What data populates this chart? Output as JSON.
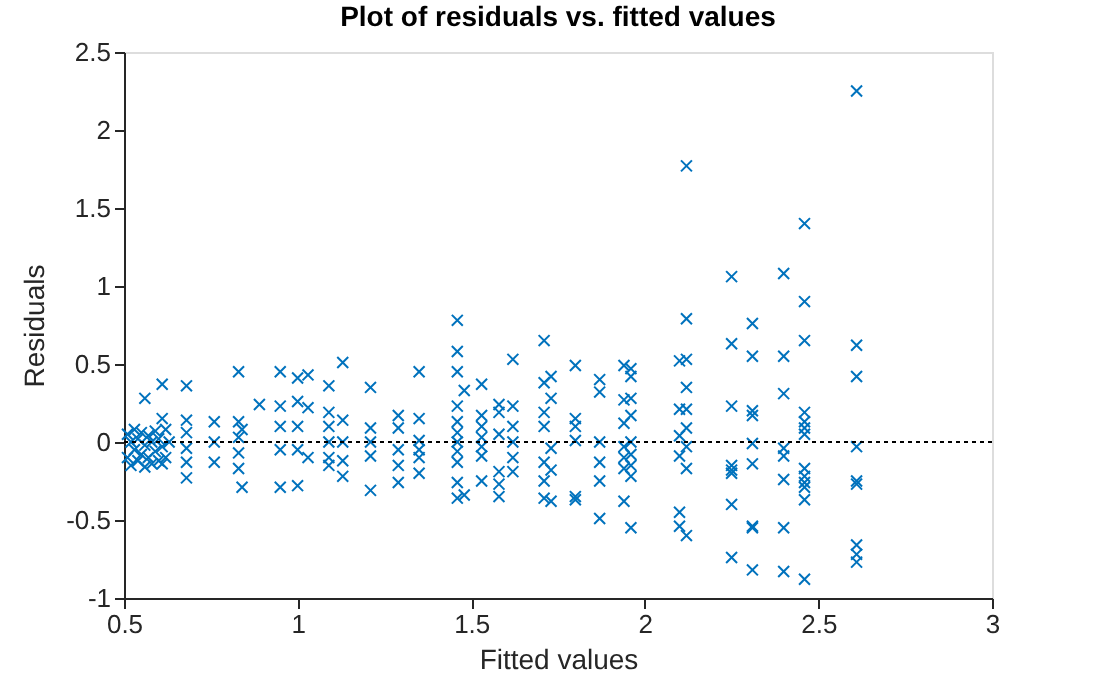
{
  "chart_data": {
    "type": "scatter",
    "title": "Plot of residuals vs. fitted values",
    "xlabel": "Fitted values",
    "ylabel": "Residuals",
    "marker": "cross",
    "grid": false,
    "legend": false,
    "xlim": [
      0.5,
      3
    ],
    "ylim": [
      -1,
      2.5
    ],
    "xticks": [
      0.5,
      1,
      1.5,
      2,
      2.5,
      3
    ],
    "yticks": [
      -1,
      -0.5,
      0,
      0.5,
      1,
      1.5,
      2,
      2.5
    ],
    "ref_lines": [
      {
        "axis": "y",
        "value": 0,
        "color": "#000000",
        "line_style": "dotted"
      }
    ],
    "series": [
      {
        "color": "#0072bd",
        "x": [
          0.51,
          0.51,
          0.52,
          0.52,
          0.53,
          0.53,
          0.54,
          0.54,
          0.55,
          0.55,
          0.56,
          0.56,
          0.57,
          0.57,
          0.58,
          0.58,
          0.59,
          0.59,
          0.6,
          0.6,
          0.61,
          0.61,
          0.61,
          0.61,
          0.62,
          0.62,
          0.56,
          0.63,
          0.68,
          0.68,
          0.68,
          0.68,
          0.68,
          0.68,
          0.76,
          0.76,
          0.76,
          0.83,
          0.83,
          0.83,
          0.83,
          0.83,
          0.84,
          0.84,
          0.89,
          0.95,
          0.95,
          0.95,
          0.95,
          0.95,
          1.0,
          1.0,
          1.0,
          1.0,
          1.0,
          1.03,
          1.03,
          1.03,
          1.09,
          1.09,
          1.09,
          1.09,
          1.09,
          1.09,
          1.13,
          1.13,
          1.13,
          1.13,
          1.13,
          1.21,
          1.21,
          1.21,
          1.21,
          1.21,
          1.29,
          1.29,
          1.29,
          1.29,
          1.29,
          1.35,
          1.35,
          1.35,
          1.35,
          1.35,
          1.35,
          1.46,
          1.46,
          1.46,
          1.46,
          1.46,
          1.46,
          1.46,
          1.46,
          1.46,
          1.46,
          1.46,
          1.48,
          1.48,
          1.53,
          1.53,
          1.53,
          1.53,
          1.53,
          1.53,
          1.53,
          1.58,
          1.58,
          1.58,
          1.58,
          1.58,
          1.58,
          1.62,
          1.62,
          1.62,
          1.62,
          1.62,
          1.62,
          1.71,
          1.71,
          1.71,
          1.71,
          1.71,
          1.71,
          1.71,
          1.73,
          1.73,
          1.73,
          1.73,
          1.73,
          1.8,
          1.8,
          1.8,
          1.8,
          1.8,
          1.8,
          1.87,
          1.87,
          1.87,
          1.87,
          1.87,
          1.87,
          1.94,
          1.94,
          1.94,
          1.94,
          1.94,
          1.94,
          1.94,
          1.96,
          1.96,
          1.96,
          1.96,
          1.96,
          1.96,
          1.96,
          1.96,
          1.96,
          2.1,
          2.1,
          2.1,
          2.1,
          2.1,
          2.1,
          2.12,
          2.12,
          2.12,
          2.12,
          2.12,
          2.12,
          2.12,
          2.12,
          2.12,
          2.25,
          2.25,
          2.25,
          2.25,
          2.25,
          2.25,
          2.25,
          2.25,
          2.31,
          2.31,
          2.31,
          2.31,
          2.31,
          2.31,
          2.31,
          2.31,
          2.31,
          2.4,
          2.4,
          2.4,
          2.4,
          2.4,
          2.4,
          2.4,
          2.4,
          2.46,
          2.46,
          2.46,
          2.46,
          2.46,
          2.46,
          2.46,
          2.46,
          2.46,
          2.46,
          2.46,
          2.46,
          2.46,
          2.61,
          2.61,
          2.61,
          2.61,
          2.61,
          2.61,
          2.61,
          2.61,
          2.61
        ],
        "values": [
          0.05,
          -0.1,
          0.0,
          -0.15,
          0.08,
          -0.05,
          0.02,
          -0.12,
          0.06,
          -0.08,
          -0.02,
          -0.16,
          0.04,
          -0.1,
          0.0,
          -0.14,
          0.07,
          -0.06,
          0.02,
          -0.12,
          0.37,
          0.15,
          -0.14,
          -0.03,
          0.08,
          -0.1,
          0.28,
          0.0,
          0.36,
          0.14,
          0.06,
          -0.04,
          -0.13,
          -0.23,
          0.13,
          0.0,
          -0.13,
          0.45,
          0.13,
          0.03,
          -0.07,
          -0.17,
          -0.29,
          0.08,
          0.24,
          0.45,
          0.23,
          0.1,
          -0.05,
          -0.29,
          0.41,
          0.26,
          0.1,
          -0.05,
          -0.28,
          0.43,
          0.22,
          -0.1,
          0.36,
          0.19,
          0.1,
          0.0,
          -0.1,
          -0.15,
          0.51,
          0.14,
          0.0,
          -0.12,
          -0.22,
          0.35,
          0.09,
          0.0,
          -0.09,
          -0.31,
          0.17,
          0.09,
          -0.05,
          -0.15,
          -0.26,
          0.45,
          0.15,
          0.01,
          -0.05,
          -0.1,
          -0.2,
          0.78,
          0.58,
          0.45,
          0.23,
          0.13,
          0.06,
          0.0,
          -0.06,
          -0.13,
          -0.26,
          -0.36,
          0.33,
          -0.34,
          0.37,
          0.17,
          0.1,
          0.03,
          -0.03,
          -0.09,
          -0.25,
          0.24,
          0.19,
          0.05,
          -0.19,
          -0.27,
          -0.35,
          0.53,
          0.23,
          0.1,
          0.0,
          -0.1,
          -0.19,
          0.65,
          0.38,
          0.19,
          0.1,
          -0.13,
          -0.25,
          -0.36,
          0.42,
          0.28,
          -0.04,
          -0.18,
          -0.38,
          0.49,
          0.15,
          0.1,
          0.01,
          -0.35,
          -0.37,
          0.4,
          0.32,
          0.0,
          -0.13,
          -0.25,
          -0.49,
          0.49,
          0.27,
          0.12,
          -0.03,
          -0.1,
          -0.17,
          -0.38,
          0.47,
          0.42,
          0.28,
          0.17,
          0.0,
          -0.08,
          -0.15,
          -0.22,
          -0.55,
          0.52,
          0.21,
          0.04,
          -0.09,
          -0.45,
          -0.54,
          1.77,
          0.79,
          0.53,
          0.35,
          0.21,
          0.09,
          -0.03,
          -0.17,
          -0.6,
          1.06,
          0.63,
          0.23,
          -0.15,
          -0.18,
          -0.2,
          -0.4,
          -0.74,
          0.76,
          0.55,
          0.2,
          0.17,
          -0.01,
          -0.14,
          -0.54,
          -0.55,
          -0.82,
          1.08,
          0.55,
          0.31,
          -0.04,
          -0.09,
          -0.24,
          -0.55,
          -0.83,
          1.4,
          0.9,
          0.65,
          0.19,
          0.13,
          0.09,
          0.05,
          -0.17,
          -0.22,
          -0.26,
          -0.29,
          -0.37,
          -0.88,
          2.25,
          0.62,
          0.42,
          -0.03,
          -0.25,
          -0.27,
          -0.66,
          -0.72,
          -0.77
        ]
      }
    ]
  }
}
